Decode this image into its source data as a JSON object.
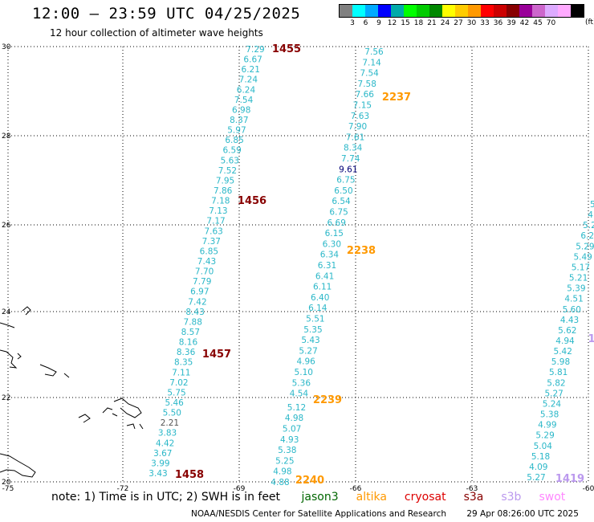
{
  "header": {
    "title": "12:00 – 23:59 UTC 04/25/2025",
    "subtitle": "12 hour collection of altimeter wave heights"
  },
  "legend": {
    "colors": [
      "#808080",
      "#00ffff",
      "#00aaff",
      "#0000ff",
      "#00aaaa",
      "#00ff00",
      "#00cc00",
      "#008800",
      "#ffff00",
      "#ffcc00",
      "#ff9900",
      "#ff0000",
      "#cc0000",
      "#880000",
      "#990099",
      "#cc66cc",
      "#ddaaff",
      "#ffaaff",
      "#000000"
    ],
    "labels": [
      "3",
      "6",
      "9",
      "12",
      "15",
      "18",
      "21",
      "24",
      "27",
      "30",
      "33",
      "36",
      "39",
      "42",
      "45",
      "70"
    ],
    "unit": "(ft)"
  },
  "axes": {
    "y_labels": [
      "30",
      "28",
      "26",
      "24",
      "22",
      "20"
    ],
    "x_labels": [
      "-75",
      "-72",
      "-69",
      "-66",
      "-63",
      "-60"
    ]
  },
  "tracks": [
    {
      "color": "#2ab7c8",
      "values": [
        "7.29",
        "6.67",
        "6.21",
        "7.24",
        "6.24",
        "7.54",
        "6.98",
        "8.37",
        "5.97",
        "6.85",
        "6.59",
        "5.63",
        "7.52",
        "7.95",
        "7.86",
        "7.18",
        "7.13",
        "7.17",
        "7.63",
        "7.37",
        "6.85",
        "7.43",
        "7.70",
        "7.79",
        "6.97",
        "7.42",
        "8.43",
        "7.88",
        "8.57",
        "8.16",
        "8.36",
        "8.35",
        "7.11",
        "7.02",
        "5.75",
        "5.46",
        "5.50",
        "2.21",
        "3.83",
        "4.42",
        "3.67",
        "3.99",
        "3.43"
      ]
    },
    {
      "color": "#2ab7c8",
      "values": [
        "7.56",
        "7.14",
        "7.54",
        "7.58",
        "7.66",
        "7.15",
        "7.63",
        "7.90",
        "7.61",
        "8.34",
        "7.74",
        "9.61",
        "6.75",
        "6.50",
        "6.54",
        "6.75",
        "6.69",
        "6.15",
        "6.30",
        "6.34",
        "6.31",
        "6.41",
        "6.11",
        "6.40",
        "6.14",
        "5.51",
        "5.35",
        "5.43",
        "5.27",
        "4.96",
        "5.10",
        "5.36",
        "4.54",
        "5.12",
        "4.98",
        "5.07",
        "4.93",
        "5.38",
        "5.25",
        "4.98",
        "4.88"
      ]
    },
    {
      "color": "#2ab7c8",
      "values": [
        "5.",
        "4.",
        "5.2",
        "6.2",
        "5.29",
        "5.49",
        "5.17",
        "5.21",
        "5.39",
        "4.51",
        "5.60",
        "4.43",
        "5.62",
        "4.94",
        "5.42",
        "5.98",
        "5.81",
        "5.82",
        "5.27",
        "5.24",
        "5.38",
        "4.99",
        "5.29",
        "5.04",
        "5.18",
        "4.09",
        "5.27"
      ]
    }
  ],
  "orbit_labels": [
    "1455",
    "1456",
    "1457",
    "1458",
    "2237",
    "2238",
    "2239",
    "2240",
    "1419",
    "1"
  ],
  "note": {
    "prefix": "note:",
    "text": "1) Time is in UTC; 2) SWH is in feet",
    "missions": [
      {
        "name": "jason3",
        "color": "#006600"
      },
      {
        "name": "altika",
        "color": "#ff9900"
      },
      {
        "name": "cryosat",
        "color": "#dd0000"
      },
      {
        "name": "s3a",
        "color": "#880000"
      },
      {
        "name": "s3b",
        "color": "#bb99ee"
      },
      {
        "name": "swot",
        "color": "#ff88ff"
      }
    ]
  },
  "footer": {
    "credit": "NOAA/NESDIS Center for Satellite Applications and Research",
    "timestamp": "29 Apr 08:26:00 UTC 2025"
  }
}
